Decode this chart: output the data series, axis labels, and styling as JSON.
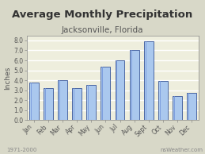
{
  "title": "Average Monthly Precipitation",
  "subtitle": "Jacksonville, Florida",
  "months": [
    "Jan",
    "Feb",
    "Mar",
    "Apr",
    "May",
    "Jun",
    "Jul",
    "Aug",
    "Sept",
    "Oct",
    "Nov",
    "Dec"
  ],
  "values": [
    3.8,
    3.2,
    4.0,
    3.2,
    3.5,
    5.4,
    6.0,
    7.0,
    7.9,
    3.9,
    2.4,
    2.7
  ],
  "bar_color": "#aac8ee",
  "bar_edge_color": "#1a3a88",
  "bar_edge_color2": "#6688cc",
  "ylabel": "Inches",
  "ylim": [
    0,
    8.5
  ],
  "yticks": [
    0.0,
    1.0,
    2.0,
    3.0,
    4.0,
    5.0,
    6.0,
    7.0,
    8.0
  ],
  "bg_color": "#d8d8c8",
  "plot_bg_color": "#eeeedd",
  "grid_color": "#ffffff",
  "footer_left": "1971-2000",
  "footer_right": "nsWeather.com",
  "title_fontsize": 9.5,
  "subtitle_fontsize": 7.5,
  "tick_fontsize": 5.5,
  "ylabel_fontsize": 6.5,
  "footer_fontsize": 5.0
}
